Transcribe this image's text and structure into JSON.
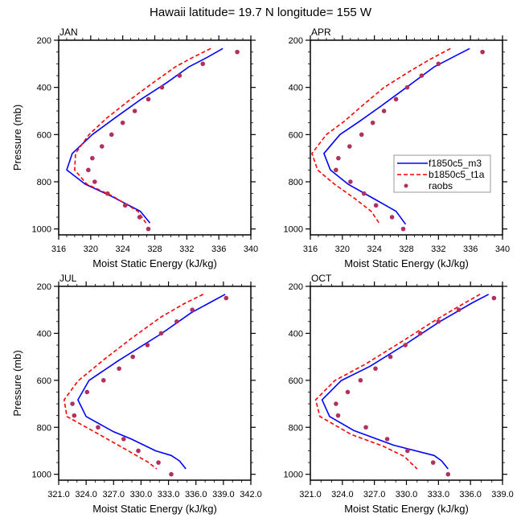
{
  "title": "Hawaii  latitude= 19.7 N longitude= 155 W",
  "colors": {
    "f1850c5_m3": "#0000ff",
    "b1850c5_t1a": "#ff0000",
    "raobs": "#b03060"
  },
  "legend": {
    "panel": "APR",
    "entries": [
      {
        "label": "f1850c5_m3",
        "style": "solid"
      },
      {
        "label": "b1850c5_t1a",
        "style": "dashed"
      },
      {
        "label": "raobs",
        "style": "marker"
      }
    ]
  },
  "chart_data": [
    {
      "type": "line",
      "panel_label": "JAN",
      "xlabel": "Moist Static Energy (kJ/kg)",
      "ylabel": "Pressure (mb)",
      "xlim": [
        316,
        340
      ],
      "ylim": [
        1025,
        200
      ],
      "xticks": [
        316,
        320,
        324,
        328,
        332,
        336,
        340
      ],
      "xtick_labels": [
        "316",
        "320",
        "324",
        "328",
        "332",
        "336",
        "340"
      ],
      "yticks": [
        200,
        400,
        600,
        800,
        1000
      ],
      "ytick_labels": [
        "200",
        "400",
        "600",
        "800",
        "1000"
      ],
      "series": [
        {
          "name": "f1850c5_m3",
          "style": "solid",
          "points": [
            [
              336.5,
              235
            ],
            [
              334.6,
              272
            ],
            [
              332.3,
              312
            ],
            [
              329.5,
              380
            ],
            [
              326.3,
              450
            ],
            [
              323.0,
              530
            ],
            [
              320.2,
              600
            ],
            [
              317.7,
              680
            ],
            [
              317.0,
              750
            ],
            [
              319.3,
              810
            ],
            [
              322.5,
              860
            ],
            [
              326.2,
              925
            ],
            [
              327.4,
              975
            ]
          ]
        },
        {
          "name": "b1850c5_t1a",
          "style": "dashed",
          "points": [
            [
              335.0,
              235
            ],
            [
              332.8,
              272
            ],
            [
              330.6,
              312
            ],
            [
              327.8,
              380
            ],
            [
              325.0,
              450
            ],
            [
              322.0,
              530
            ],
            [
              319.8,
              600
            ],
            [
              318.1,
              680
            ],
            [
              318.0,
              750
            ],
            [
              319.5,
              810
            ],
            [
              322.7,
              860
            ],
            [
              325.9,
              925
            ],
            [
              326.9,
              975
            ]
          ]
        },
        {
          "name": "raobs",
          "style": "marker",
          "points": [
            [
              338.3,
              250
            ],
            [
              334.0,
              300
            ],
            [
              331.1,
              350
            ],
            [
              328.9,
              400
            ],
            [
              327.2,
              450
            ],
            [
              325.5,
              500
            ],
            [
              324.0,
              550
            ],
            [
              322.6,
              600
            ],
            [
              321.4,
              650
            ],
            [
              320.2,
              700
            ],
            [
              319.7,
              750
            ],
            [
              320.5,
              800
            ],
            [
              322.1,
              850
            ],
            [
              324.3,
              900
            ],
            [
              326.1,
              950
            ],
            [
              327.2,
              1000
            ]
          ]
        }
      ]
    },
    {
      "type": "line",
      "panel_label": "APR",
      "xlabel": "Moist Static Energy (kJ/kg)",
      "ylabel": "",
      "xlim": [
        316,
        340
      ],
      "ylim": [
        1025,
        200
      ],
      "xticks": [
        316,
        320,
        324,
        328,
        332,
        336,
        340
      ],
      "xtick_labels": [
        "316",
        "320",
        "324",
        "328",
        "332",
        "336",
        "340"
      ],
      "yticks": [
        200,
        400,
        600,
        800,
        1000
      ],
      "ytick_labels": [
        "200",
        "400",
        "600",
        "800",
        "1000"
      ],
      "series": [
        {
          "name": "f1850c5_m3",
          "style": "solid",
          "points": [
            [
              335.9,
              235
            ],
            [
              333.8,
              272
            ],
            [
              331.5,
              312
            ],
            [
              328.0,
              400
            ],
            [
              324.8,
              480
            ],
            [
              322.1,
              545
            ],
            [
              319.7,
              600
            ],
            [
              317.7,
              680
            ],
            [
              318.5,
              750
            ],
            [
              320.7,
              810
            ],
            [
              324.1,
              875
            ],
            [
              326.7,
              925
            ],
            [
              327.9,
              980
            ]
          ]
        },
        {
          "name": "b1850c5_t1a",
          "style": "dashed",
          "points": [
            [
              333.5,
              235
            ],
            [
              331.0,
              280
            ],
            [
              328.5,
              330
            ],
            [
              325.2,
              400
            ],
            [
              322.4,
              480
            ],
            [
              320.2,
              545
            ],
            [
              318.0,
              600
            ],
            [
              316.2,
              680
            ],
            [
              316.9,
              750
            ],
            [
              319.0,
              810
            ],
            [
              321.5,
              870
            ],
            [
              323.6,
              925
            ],
            [
              324.7,
              980
            ]
          ]
        },
        {
          "name": "raobs",
          "style": "marker",
          "points": [
            [
              337.5,
              250
            ],
            [
              332.0,
              300
            ],
            [
              329.9,
              350
            ],
            [
              328.1,
              400
            ],
            [
              326.7,
              450
            ],
            [
              325.2,
              500
            ],
            [
              323.8,
              550
            ],
            [
              322.4,
              600
            ],
            [
              320.9,
              650
            ],
            [
              319.5,
              700
            ],
            [
              319.2,
              750
            ],
            [
              321.0,
              800
            ],
            [
              322.7,
              850
            ],
            [
              324.2,
              900
            ],
            [
              326.2,
              950
            ],
            [
              327.6,
              1000
            ]
          ]
        }
      ]
    },
    {
      "type": "line",
      "panel_label": "JUL",
      "xlabel": "Moist Static Energy (kJ/kg)",
      "ylabel": "Pressure (mb)",
      "xlim": [
        321,
        342
      ],
      "ylim": [
        1025,
        200
      ],
      "xticks": [
        321,
        324,
        327,
        330,
        333,
        336,
        339,
        342
      ],
      "xtick_labels": [
        "321.0",
        "324.0",
        "327.0",
        "330.0",
        "333.0",
        "336.0",
        "339.0",
        "342.0"
      ],
      "yticks": [
        200,
        400,
        600,
        800,
        1000
      ],
      "ytick_labels": [
        "200",
        "400",
        "600",
        "800",
        "1000"
      ],
      "series": [
        {
          "name": "f1850c5_m3",
          "style": "solid",
          "points": [
            [
              339.2,
              234
            ],
            [
              337.4,
              272
            ],
            [
              335.5,
              312
            ],
            [
              332.2,
              402
            ],
            [
              327.5,
              517
            ],
            [
              324.3,
              601
            ],
            [
              323.1,
              683
            ],
            [
              324.0,
              754
            ],
            [
              326.9,
              817
            ],
            [
              328.9,
              849
            ],
            [
              331.6,
              900
            ],
            [
              333.3,
              920
            ],
            [
              334.2,
              943
            ],
            [
              334.9,
              977
            ]
          ]
        },
        {
          "name": "b1850c5_t1a",
          "style": "dashed",
          "points": [
            [
              336.8,
              234
            ],
            [
              334.8,
              272
            ],
            [
              332.2,
              330
            ],
            [
              329.0,
              420
            ],
            [
              326.0,
              510
            ],
            [
              323.1,
              603
            ],
            [
              321.6,
              683
            ],
            [
              321.9,
              754
            ],
            [
              325.4,
              830
            ],
            [
              328.6,
              900
            ],
            [
              330.8,
              949
            ],
            [
              331.7,
              977
            ]
          ]
        },
        {
          "name": "raobs",
          "style": "marker",
          "points": [
            [
              339.3,
              250
            ],
            [
              335.6,
              300
            ],
            [
              333.9,
              350
            ],
            [
              332.2,
              400
            ],
            [
              330.7,
              450
            ],
            [
              329.1,
              500
            ],
            [
              327.6,
              550
            ],
            [
              325.9,
              600
            ],
            [
              324.1,
              650
            ],
            [
              322.5,
              700
            ],
            [
              322.7,
              750
            ],
            [
              325.3,
              800
            ],
            [
              328.1,
              850
            ],
            [
              329.7,
              900
            ],
            [
              331.9,
              950
            ],
            [
              333.3,
              1000
            ]
          ]
        }
      ]
    },
    {
      "type": "line",
      "panel_label": "OCT",
      "xlabel": "Moist Static Energy (kJ/kg)",
      "ylabel": "",
      "xlim": [
        321,
        339
      ],
      "ylim": [
        1025,
        200
      ],
      "xticks": [
        321,
        324,
        327,
        330,
        333,
        336,
        339
      ],
      "xtick_labels": [
        "321.0",
        "324.0",
        "327.0",
        "330.0",
        "333.0",
        "336.0",
        "339.0"
      ],
      "yticks": [
        200,
        400,
        600,
        800,
        1000
      ],
      "ytick_labels": [
        "200",
        "400",
        "600",
        "800",
        "1000"
      ],
      "series": [
        {
          "name": "f1850c5_m3",
          "style": "solid",
          "points": [
            [
              337.7,
              234
            ],
            [
              336.1,
              272
            ],
            [
              333.1,
              351
            ],
            [
              329.8,
              450
            ],
            [
              326.6,
              540
            ],
            [
              323.9,
              601
            ],
            [
              322.1,
              683
            ],
            [
              322.8,
              754
            ],
            [
              325.1,
              814
            ],
            [
              328.8,
              876
            ],
            [
              332.6,
              920
            ],
            [
              333.3,
              943
            ],
            [
              333.9,
              977
            ]
          ]
        },
        {
          "name": "b1850c5_t1a",
          "style": "dashed",
          "points": [
            [
              336.9,
              234
            ],
            [
              335.1,
              280
            ],
            [
              332.5,
              350
            ],
            [
              329.4,
              440
            ],
            [
              326.2,
              530
            ],
            [
              323.3,
              601
            ],
            [
              321.5,
              683
            ],
            [
              321.9,
              754
            ],
            [
              324.8,
              830
            ],
            [
              327.8,
              880
            ],
            [
              329.8,
              924
            ],
            [
              331.0,
              977
            ]
          ]
        },
        {
          "name": "raobs",
          "style": "marker",
          "points": [
            [
              338.2,
              250
            ],
            [
              334.9,
              300
            ],
            [
              333.0,
              350
            ],
            [
              331.3,
              400
            ],
            [
              329.9,
              450
            ],
            [
              328.5,
              500
            ],
            [
              327.1,
              550
            ],
            [
              325.7,
              600
            ],
            [
              324.5,
              650
            ],
            [
              323.4,
              700
            ],
            [
              323.6,
              750
            ],
            [
              326.2,
              800
            ],
            [
              328.2,
              850
            ],
            [
              330.1,
              900
            ],
            [
              332.5,
              950
            ],
            [
              333.9,
              1000
            ]
          ]
        }
      ]
    }
  ]
}
